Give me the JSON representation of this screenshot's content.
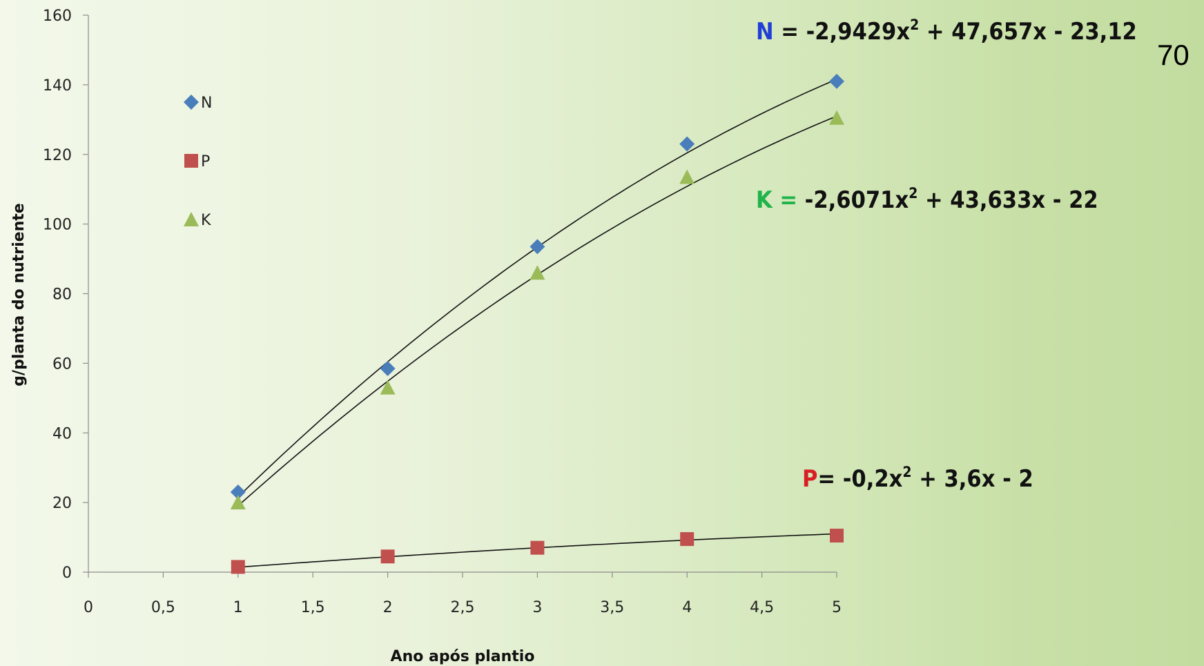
{
  "page_number": "70",
  "equations": {
    "N": {
      "var": "N",
      "var_color": "#1f3fd6",
      "lhs": " = -2,9429x",
      "sup": "2",
      "rhs": " + 47,657x - 23,12"
    },
    "K": {
      "var": "K",
      "var_color": "#1fb34a",
      "lhs": " = -2,6071x",
      "sup": "2",
      "rhs": " + 43,633x - 22",
      "eq_color": "#1fb34a"
    },
    "P": {
      "var": "P",
      "var_color": "#d81f26",
      "lhs": "= -0,2x",
      "sup": "2",
      "rhs": " + 3,6x - 2"
    }
  },
  "chart_data": {
    "type": "scatter",
    "title": "",
    "xlabel": "Ano após plantio",
    "ylabel": "g/planta do nutriente",
    "xlim": [
      0,
      5
    ],
    "ylim": [
      0,
      160
    ],
    "x_ticks": [
      0,
      0.5,
      1,
      1.5,
      2,
      2.5,
      3,
      3.5,
      4,
      4.5,
      5
    ],
    "x_tick_labels": [
      "0",
      "0,5",
      "1",
      "1,5",
      "2",
      "2,5",
      "3",
      "3,5",
      "4",
      "4,5",
      "5"
    ],
    "y_ticks": [
      0,
      20,
      40,
      60,
      80,
      100,
      120,
      140,
      160
    ],
    "y_tick_labels": [
      "0",
      "20",
      "40",
      "60",
      "80",
      "100",
      "120",
      "140",
      "160"
    ],
    "grid": false,
    "legend_position": "top-left",
    "series": [
      {
        "name": "N",
        "marker": "diamond",
        "color": "#4a7ebb",
        "x": [
          1,
          2,
          3,
          4,
          5
        ],
        "y": [
          23,
          58.5,
          93.5,
          123,
          141
        ],
        "trend": [
          -2.9429,
          47.657,
          -23.12
        ]
      },
      {
        "name": "P",
        "marker": "square",
        "color": "#c0504d",
        "x": [
          1,
          2,
          3,
          4,
          5
        ],
        "y": [
          1.5,
          4.5,
          7,
          9.5,
          10.5
        ],
        "trend": [
          -0.2,
          3.6,
          -2
        ]
      },
      {
        "name": "K",
        "marker": "triangle",
        "color": "#9bbb59",
        "x": [
          1,
          2,
          3,
          4,
          5
        ],
        "y": [
          20,
          53,
          86,
          113.5,
          130.5
        ],
        "trend": [
          -2.6071,
          43.633,
          -22
        ]
      }
    ]
  }
}
